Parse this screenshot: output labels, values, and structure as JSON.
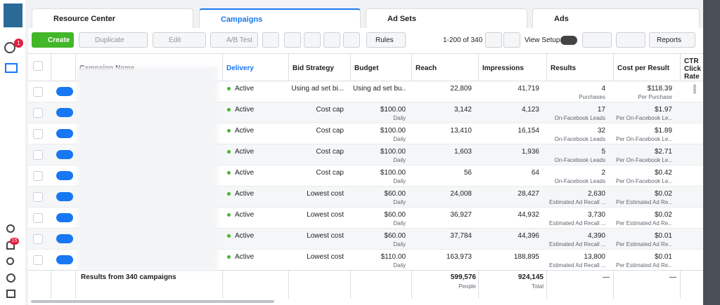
{
  "tabs": [
    "Resource Center",
    "Campaigns",
    "Ad Sets",
    "Ads"
  ],
  "toolbar": {
    "create": "Create",
    "duplicate": "Duplicate",
    "edit": "Edit",
    "ab_test": "A/B Test",
    "rules": "Rules",
    "pagination": "1-200 of 340",
    "view_setup": "View Setup",
    "reports": "Reports"
  },
  "sidebar": {
    "badge_top": "1",
    "badge_notifications": "15"
  },
  "table": {
    "headers": [
      "Campaign Name",
      "Delivery",
      "Bid Strategy",
      "Budget",
      "Reach",
      "Impressions",
      "Results",
      "Cost per Result",
      "CTR Click Rate"
    ],
    "rows": [
      {
        "delivery": "Active",
        "bid_strategy": "Using ad set bi...",
        "budget": "Using ad set bu...",
        "reach": "22,809",
        "impressions": "41,719",
        "results": "4",
        "results_note": "Purchases",
        "cost": "$118.39",
        "cost_note": "Per Purchase"
      },
      {
        "delivery": "Active",
        "bid_strategy": "Cost cap",
        "budget": "$100.00",
        "budget_note": "Daily",
        "reach": "3,142",
        "impressions": "4,123",
        "results": "17",
        "results_note": "On-Facebook Leads",
        "cost": "$1.97",
        "cost_note": "Per On-Facebook Le..."
      },
      {
        "delivery": "Active",
        "bid_strategy": "Cost cap",
        "budget": "$100.00",
        "budget_note": "Daily",
        "reach": "13,410",
        "impressions": "16,154",
        "results": "32",
        "results_note": "On-Facebook Leads",
        "cost": "$1.89",
        "cost_note": "Per On-Facebook Le..."
      },
      {
        "delivery": "Active",
        "bid_strategy": "Cost cap",
        "budget": "$100.00",
        "budget_note": "Daily",
        "reach": "1,603",
        "impressions": "1,936",
        "results": "5",
        "results_note": "On-Facebook Leads",
        "cost": "$2.71",
        "cost_note": "Per On-Facebook Le..."
      },
      {
        "delivery": "Active",
        "bid_strategy": "Cost cap",
        "budget": "$100.00",
        "budget_note": "Daily",
        "reach": "56",
        "impressions": "64",
        "results": "2",
        "results_note": "On-Facebook Leads",
        "cost": "$0.42",
        "cost_note": "Per On-Facebook Le..."
      },
      {
        "delivery": "Active",
        "bid_strategy": "Lowest cost",
        "budget": "$60.00",
        "budget_note": "Daily",
        "reach": "24,008",
        "impressions": "28,427",
        "results": "2,630",
        "results_note": "Estimated Ad Recall ...",
        "cost": "$0.02",
        "cost_note": "Per Estimated Ad Re..."
      },
      {
        "delivery": "Active",
        "bid_strategy": "Lowest cost",
        "budget": "$60.00",
        "budget_note": "Daily",
        "reach": "36,927",
        "impressions": "44,932",
        "results": "3,730",
        "results_note": "Estimated Ad Recall ...",
        "cost": "$0.02",
        "cost_note": "Per Estimated Ad Re..."
      },
      {
        "delivery": "Active",
        "bid_strategy": "Lowest cost",
        "budget": "$60.00",
        "budget_note": "Daily",
        "reach": "37,784",
        "impressions": "44,396",
        "results": "4,390",
        "results_note": "Estimated Ad Recall ...",
        "cost": "$0.01",
        "cost_note": "Per Estimated Ad Re..."
      },
      {
        "delivery": "Active",
        "bid_strategy": "Lowest cost",
        "budget": "$110.00",
        "budget_note": "Daily",
        "reach": "163,973",
        "impressions": "188,895",
        "results": "13,800",
        "results_note": "Estimated Ad Recall ...",
        "cost": "$0.01",
        "cost_note": "Per Estimated Ad Re..."
      }
    ],
    "footer": {
      "label": "Results from 340 campaigns",
      "reach": "599,576",
      "reach_note": "People",
      "impressions": "924,145",
      "impressions_note": "Total",
      "results": "—",
      "cost": "—"
    }
  }
}
